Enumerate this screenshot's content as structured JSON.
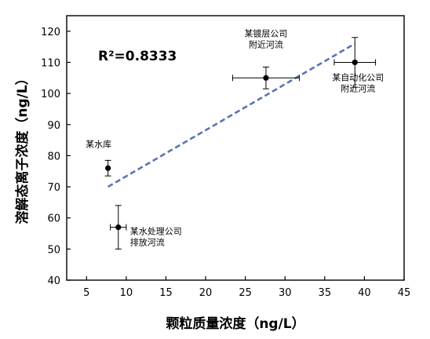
{
  "chart_data": {
    "type": "scatter",
    "xlabel": "颗粒质量浓度（ng/L）",
    "ylabel": "溶解态离子浓度（ng/L）",
    "xlim": [
      2.5,
      45
    ],
    "ylim": [
      40,
      125
    ],
    "xticks": [
      5,
      10,
      15,
      20,
      25,
      30,
      35,
      40,
      45
    ],
    "yticks": [
      40,
      50,
      60,
      70,
      80,
      90,
      100,
      110,
      120
    ],
    "points": [
      {
        "x": 7.7,
        "y": 76,
        "xerr": 0.0,
        "yerr": 2.5,
        "label": [
          "某水库"
        ]
      },
      {
        "x": 9.0,
        "y": 57,
        "xerr": 1.0,
        "yerr": 7.0,
        "label": [
          "某水处理公司",
          "排放河流"
        ]
      },
      {
        "x": 27.6,
        "y": 105,
        "xerr": 4.2,
        "yerr": 3.5,
        "label": [
          "某镀层公司",
          "附近河流"
        ]
      },
      {
        "x": 38.8,
        "y": 110,
        "xerr": 2.6,
        "yerr": 8.0,
        "label": [
          "某自动化公司",
          "附近河流"
        ]
      }
    ],
    "fit_line": {
      "x": [
        7.7,
        38.8
      ],
      "y": [
        70,
        116
      ],
      "style": "dashed",
      "color": "#5b73b3"
    },
    "annotation": "R²=0.8333",
    "grid": false,
    "legend": "none"
  }
}
